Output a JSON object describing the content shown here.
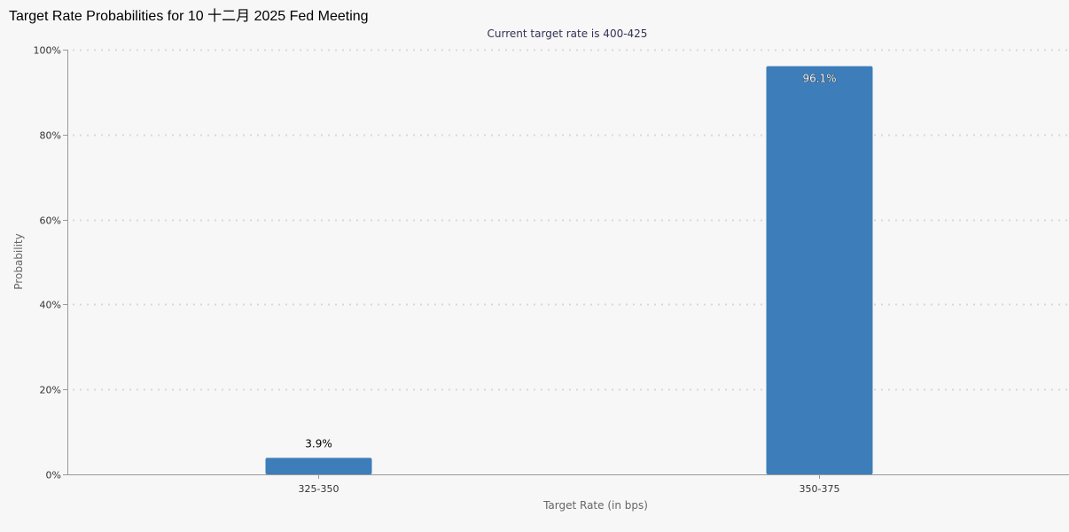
{
  "title": "Target Rate Probabilities for 10 十二月 2025 Fed Meeting",
  "chart_data": {
    "type": "bar",
    "title": "Target Rate Probabilities for 10 十二月 2025 Fed Meeting",
    "subtitle": "Current target rate is 400-425",
    "xlabel": "Target Rate (in bps)",
    "ylabel": "Probability",
    "categories": [
      "325-350",
      "350-375"
    ],
    "values": [
      3.9,
      96.1
    ],
    "data_labels": [
      "3.9%",
      "96.1%"
    ],
    "ylim": [
      0,
      100
    ],
    "yticks": [
      "0%",
      "20%",
      "40%",
      "60%",
      "80%",
      "100%"
    ],
    "grid": true,
    "bar_color": "#3d7dba"
  }
}
